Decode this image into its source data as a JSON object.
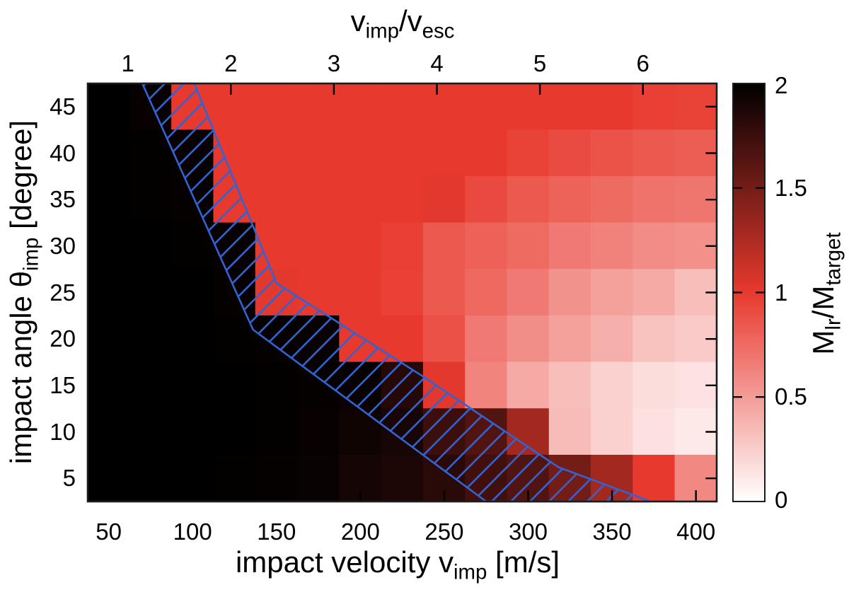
{
  "chart_data": {
    "type": "heatmap",
    "description": "Largest-remnant mass ratio M_lr/M_target as a function of impact velocity and impact angle; dark = merging, red/white = erosion; blue hatched band marks the transition region",
    "x": [
      50,
      75,
      100,
      125,
      150,
      175,
      200,
      225,
      250,
      275,
      300,
      325,
      350,
      375,
      400
    ],
    "y": [
      45,
      40,
      35,
      30,
      25,
      20,
      15,
      10,
      5
    ],
    "xlabel": "impact velocity v_imp [m/s]",
    "ylabel": "impact angle theta_imp [degree]",
    "top_axis_label": "v_imp/v_esc",
    "colorbar_label": "M_lr/M_target",
    "x_range_m_s": [
      37.5,
      412.5
    ],
    "y_range_deg": [
      2.5,
      47.5
    ],
    "color_range": [
      0,
      2
    ],
    "v_esc_m_s": 61.4,
    "x_ticks": [
      50,
      100,
      150,
      200,
      250,
      300,
      350,
      400
    ],
    "top_axis_ticks": [
      1,
      2,
      3,
      4,
      5,
      6
    ],
    "y_ticks": [
      45,
      40,
      35,
      30,
      25,
      20,
      15,
      10,
      5
    ],
    "colorbar_ticks": [
      2,
      1.5,
      1,
      0.5,
      0
    ],
    "values": [
      [
        2.0,
        1.97,
        1.0,
        1.0,
        1.0,
        1.0,
        1.0,
        1.0,
        1.0,
        1.0,
        1.0,
        1.0,
        1.0,
        0.97,
        0.95
      ],
      [
        2.0,
        1.99,
        1.97,
        1.0,
        1.0,
        1.0,
        1.0,
        1.0,
        1.0,
        1.0,
        0.95,
        0.91,
        0.87,
        0.84,
        0.82
      ],
      [
        2.0,
        1.99,
        1.98,
        1.0,
        1.0,
        1.0,
        1.0,
        1.0,
        1.02,
        0.92,
        0.84,
        0.79,
        0.75,
        0.71,
        0.69
      ],
      [
        2.0,
        2.0,
        1.99,
        1.97,
        1.0,
        1.0,
        1.0,
        0.97,
        0.84,
        0.8,
        0.75,
        0.67,
        0.63,
        0.58,
        0.56
      ],
      [
        2.0,
        2.0,
        2.0,
        1.98,
        1.02,
        1.0,
        1.0,
        0.96,
        0.84,
        0.76,
        0.67,
        0.55,
        0.48,
        0.43,
        0.33
      ],
      [
        2.0,
        2.0,
        2.0,
        1.99,
        1.98,
        1.96,
        1.0,
        1.0,
        0.88,
        0.67,
        0.57,
        0.48,
        0.4,
        0.31,
        0.27
      ],
      [
        2.0,
        2.0,
        2.0,
        2.0,
        1.99,
        1.98,
        1.96,
        1.84,
        1.02,
        0.62,
        0.43,
        0.33,
        0.23,
        0.17,
        0.14
      ],
      [
        2.0,
        2.0,
        2.0,
        2.0,
        1.99,
        1.97,
        1.93,
        1.9,
        1.74,
        1.65,
        1.3,
        0.34,
        0.23,
        0.15,
        0.11
      ],
      [
        2.0,
        2.0,
        2.0,
        1.99,
        1.98,
        1.96,
        1.91,
        1.88,
        1.82,
        1.72,
        1.65,
        1.5,
        1.3,
        1.0,
        0.6
      ]
    ],
    "colormap": {
      "0": "#ffffff",
      "1": "#e8392e",
      "2": "#000000"
    },
    "hatched_band": {
      "color": "#3263d2",
      "meaning": "transition zone between accretion (dark) and hit-and-run/erosion (red)",
      "upper_edge_data": [
        [
          70,
          47.5
        ],
        [
          136,
          21
        ],
        [
          275,
          2.5
        ]
      ],
      "lower_edge_data": [
        [
          101,
          47.5
        ],
        [
          150,
          26
        ],
        [
          237,
          16
        ],
        [
          318,
          6.2
        ],
        [
          373,
          2.5
        ]
      ]
    }
  },
  "labels": {
    "title": {
      "p1": "v",
      "s1": "imp",
      "p2": "/v",
      "s2": "esc"
    },
    "xlabel": {
      "p1": "impact velocity v",
      "s1": "imp",
      "p2": " [m/s]"
    },
    "ylabel": {
      "p1": "impact angle θ",
      "s1": "imp",
      "p2": " [degree]"
    },
    "cblabel": {
      "p1": "M",
      "s1": "lr",
      "p2": "/M",
      "s2": "target"
    },
    "x_tick_labels": [
      "50",
      "100",
      "150",
      "200",
      "250",
      "300",
      "350",
      "400"
    ],
    "top_tick_labels": [
      "1",
      "2",
      "3",
      "4",
      "5",
      "6"
    ],
    "y_tick_labels": [
      "45",
      "40",
      "35",
      "30",
      "25",
      "20",
      "15",
      "10",
      "5"
    ],
    "cb_tick_labels": [
      "2",
      "1.5",
      "1",
      "0.5",
      "0"
    ]
  }
}
